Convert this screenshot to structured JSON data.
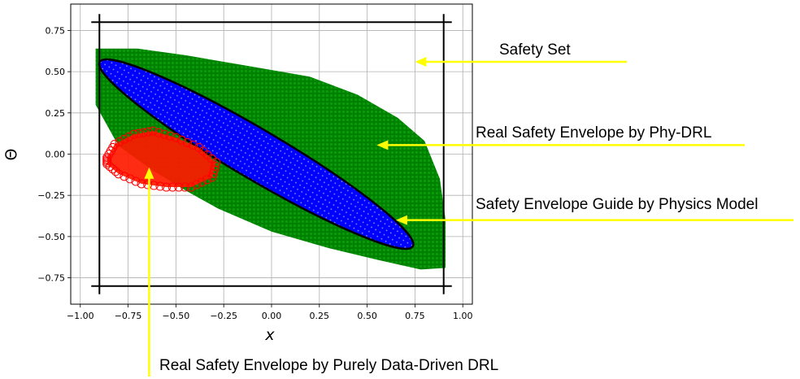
{
  "chart_data": {
    "type": "scatter",
    "title": "",
    "xlabel": "x",
    "ylabel": "Θ",
    "xlim": [
      -1.05,
      1.05
    ],
    "ylim": [
      -0.91,
      0.91
    ],
    "grid": true,
    "x_ticks": [
      -1.0,
      -0.75,
      -0.5,
      -0.25,
      0.0,
      0.25,
      0.5,
      0.75,
      1.0
    ],
    "x_tick_labels": [
      "−1.00",
      "−0.75",
      "−0.50",
      "−0.25",
      "0.00",
      "0.25",
      "0.50",
      "0.75",
      "1.00"
    ],
    "y_ticks": [
      -0.75,
      -0.5,
      -0.25,
      0.0,
      0.25,
      0.5,
      0.75
    ],
    "y_tick_labels": [
      "−0.75",
      "−0.50",
      "−0.25",
      "0.00",
      "0.25",
      "0.50",
      "0.75"
    ],
    "safety_set": {
      "x": [
        -0.9,
        0.9
      ],
      "y": [
        -0.8,
        0.8
      ]
    },
    "regions": {
      "green_polygon": [
        [
          -0.92,
          0.64
        ],
        [
          -0.7,
          0.64
        ],
        [
          -0.45,
          0.6
        ],
        [
          -0.1,
          0.53
        ],
        [
          0.2,
          0.47
        ],
        [
          0.45,
          0.36
        ],
        [
          0.66,
          0.22
        ],
        [
          0.8,
          0.08
        ],
        [
          0.88,
          -0.15
        ],
        [
          0.91,
          -0.4
        ],
        [
          0.91,
          -0.69
        ],
        [
          0.78,
          -0.7
        ],
        [
          0.55,
          -0.64
        ],
        [
          0.3,
          -0.57
        ],
        [
          0.0,
          -0.47
        ],
        [
          -0.28,
          -0.33
        ],
        [
          -0.45,
          -0.22
        ],
        [
          -0.62,
          -0.1
        ],
        [
          -0.8,
          0.05
        ],
        [
          -0.92,
          0.3
        ]
      ],
      "blue_ellipse": {
        "cx": -0.08,
        "cy": 0.0,
        "rx": 0.95,
        "ry": 0.13,
        "angle_deg": -30.5
      },
      "red_polygon": [
        [
          -0.86,
          -0.02
        ],
        [
          -0.82,
          0.06
        ],
        [
          -0.72,
          0.12
        ],
        [
          -0.62,
          0.14
        ],
        [
          -0.5,
          0.1
        ],
        [
          -0.38,
          0.04
        ],
        [
          -0.29,
          -0.05
        ],
        [
          -0.31,
          -0.14
        ],
        [
          -0.42,
          -0.2
        ],
        [
          -0.55,
          -0.2
        ],
        [
          -0.68,
          -0.18
        ],
        [
          -0.8,
          -0.12
        ],
        [
          -0.86,
          -0.06
        ]
      ]
    },
    "annotations": [
      {
        "text": "Safety Set",
        "target": [
          0.75,
          0.56
        ]
      },
      {
        "text": "Real Safety Envelope by Phy-DRL",
        "target": [
          0.55,
          0.055
        ]
      },
      {
        "text": "Safety Envelope Guide by Physics Model",
        "target": [
          0.65,
          -0.4
        ]
      },
      {
        "text": "Real Safety Envelope by Purely Data-Driven DRL",
        "target": [
          -0.64,
          -0.08
        ]
      }
    ],
    "colors": {
      "green": "#008000",
      "blue": "#0000ff",
      "red": "#ff0000",
      "arrow": "#ffff00"
    }
  }
}
